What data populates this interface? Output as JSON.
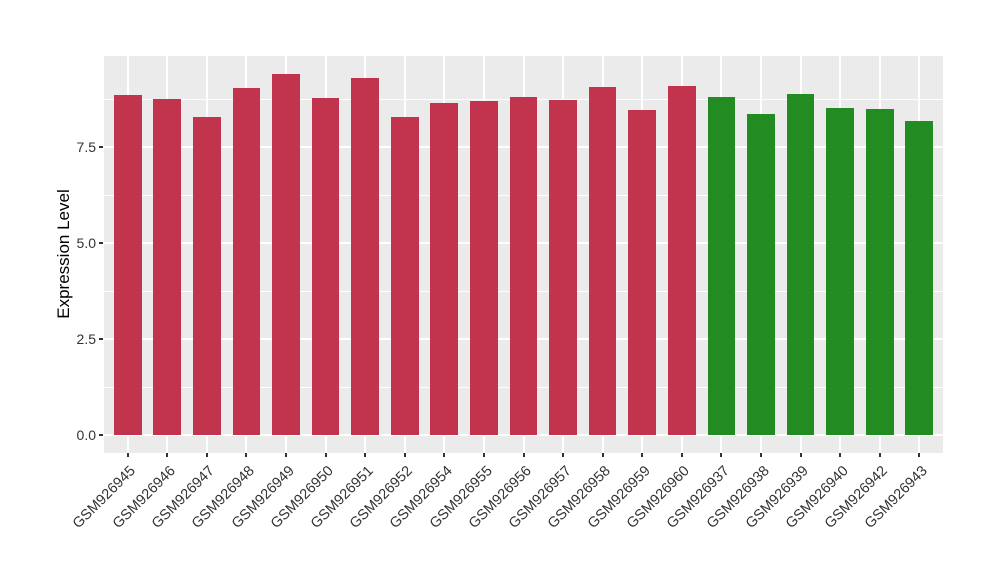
{
  "chart_data": {
    "type": "bar",
    "title": "",
    "xlabel": "",
    "ylabel": "Expression Level",
    "y_ticks": [
      "0.0",
      "2.5",
      "5.0",
      "7.5"
    ],
    "y_minor_gridlines": [
      1.25,
      3.75,
      6.25,
      8.75
    ],
    "ylim": [
      -0.47,
      9.87
    ],
    "grid": "on",
    "legend_position": "none",
    "categories": [
      "GSM926945",
      "GSM926946",
      "GSM926947",
      "GSM926948",
      "GSM926949",
      "GSM926950",
      "GSM926951",
      "GSM926952",
      "GSM926954",
      "GSM926955",
      "GSM926956",
      "GSM926957",
      "GSM926958",
      "GSM926959",
      "GSM926960",
      "GSM926937",
      "GSM926938",
      "GSM926939",
      "GSM926940",
      "GSM926942",
      "GSM926943"
    ],
    "values": [
      8.85,
      8.76,
      8.29,
      9.04,
      9.39,
      8.78,
      9.3,
      8.28,
      8.64,
      8.69,
      8.79,
      8.73,
      9.05,
      8.46,
      9.09,
      8.8,
      8.35,
      8.88,
      8.52,
      8.49,
      8.18
    ],
    "bar_groups": [
      "red",
      "red",
      "red",
      "red",
      "red",
      "red",
      "red",
      "red",
      "red",
      "red",
      "red",
      "red",
      "red",
      "red",
      "red",
      "green",
      "green",
      "green",
      "green",
      "green",
      "green"
    ],
    "palette": {
      "red": "#C2334E",
      "green": "#228B22"
    },
    "panel_background": "#EBEBEB",
    "gridline_color": "#FFFFFF",
    "axis_text_color": "#333333"
  }
}
